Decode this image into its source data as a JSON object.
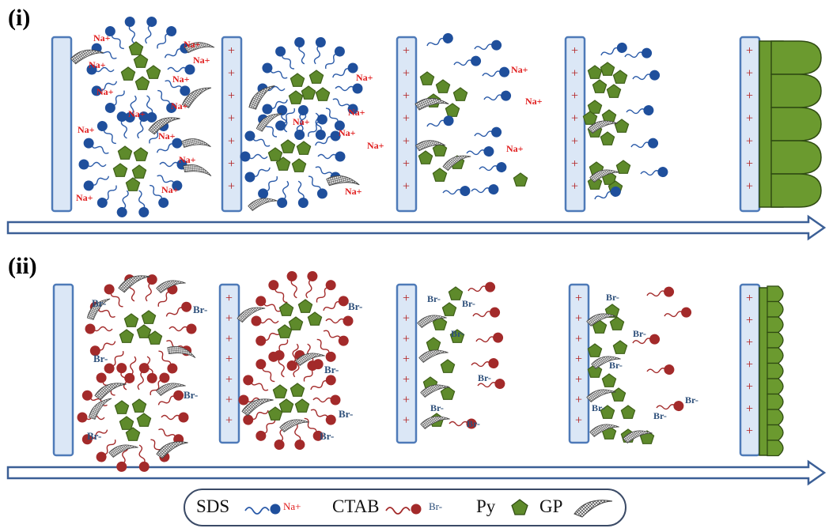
{
  "panels": {
    "i": {
      "label": "(i)"
    },
    "ii": {
      "label": "(ii)"
    }
  },
  "ions": {
    "sodium": "Na+",
    "bromide": "Br-"
  },
  "electrode_charge": "+",
  "legend": {
    "sds": "SDS",
    "sds_ion": "Na+",
    "ctab": "CTAB",
    "ctab_ion": "Br-",
    "py": "Py",
    "gp": "GP"
  },
  "colors": {
    "sds_head": "#1f4f9c",
    "ctab_head": "#a32a2a",
    "py": "#5e8a2b",
    "py_stroke": "#3d5e17",
    "electrode_fill": "#dbe7f6",
    "electrode_stroke": "#4e7ab8",
    "sodium_text": "#e01b1b",
    "bromide_text": "#2d4f7a",
    "film": "#6b9a2f",
    "arrow": "#3b5f96"
  }
}
